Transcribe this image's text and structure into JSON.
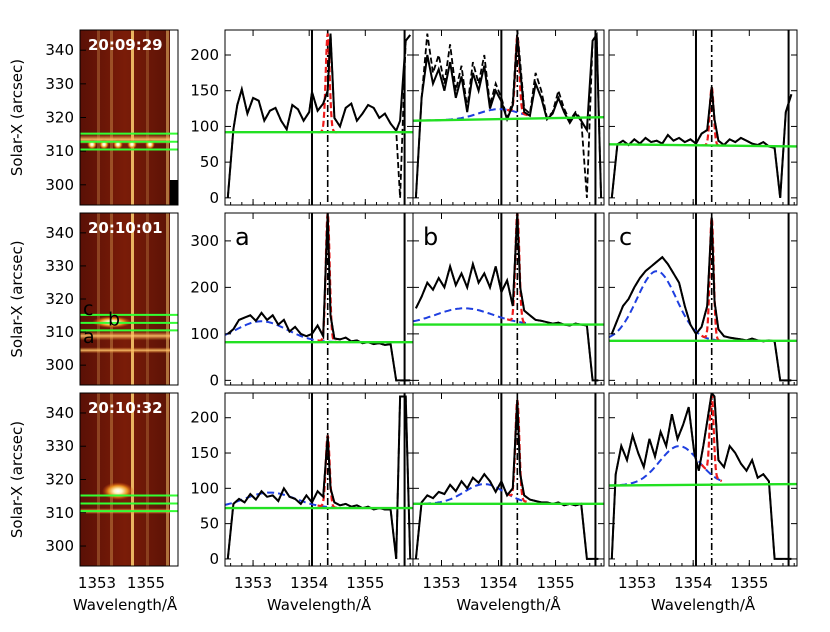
{
  "figure": {
    "ylabel": "Solar-X (arcsec)",
    "xlabel": "Wavelength/Å"
  },
  "chart_data": [
    {
      "type": "heatmap",
      "panel": "image-row-1",
      "timestamp": "20:09:29",
      "ylabel": "Solar-X (arcsec)",
      "x_ticks": [
        "1353",
        "1355"
      ],
      "y_ticks": [
        "340",
        "330",
        "320",
        "310",
        "300"
      ],
      "ylim": [
        294,
        346
      ],
      "green_lines_y": [
        310.5,
        312.8,
        315.2
      ],
      "slit_letters": [],
      "colormap": "red-yellow"
    },
    {
      "type": "heatmap",
      "panel": "image-row-2",
      "timestamp": "20:10:01",
      "ylabel": "Solar-X (arcsec)",
      "x_ticks": [
        "1353",
        "1355"
      ],
      "y_ticks": [
        "340",
        "330",
        "320",
        "310",
        "300"
      ],
      "ylim": [
        294,
        346
      ],
      "green_lines_y": [
        310.5,
        312.8,
        315.2
      ],
      "slit_letters": [
        "c",
        "b",
        "a"
      ],
      "colormap": "red-yellow"
    },
    {
      "type": "heatmap",
      "panel": "image-row-3",
      "timestamp": "20:10:32",
      "ylabel": "Solar-X (arcsec)",
      "xlabel": "Wavelength/Å",
      "x_ticks": [
        "1353",
        "1355"
      ],
      "y_ticks": [
        "340",
        "330",
        "320",
        "310",
        "300"
      ],
      "ylim": [
        294,
        346
      ],
      "green_lines_y": [
        310.5,
        312.8,
        315.2
      ],
      "slit_letters": [],
      "colormap": "red-yellow"
    },
    {
      "type": "line",
      "panel": "r1c1",
      "label": "",
      "xlim": [
        1352.5,
        1355.85
      ],
      "ylim": [
        -10,
        235
      ],
      "yticks": [
        0,
        50,
        100,
        150,
        200
      ],
      "background": 92,
      "gaussian": null,
      "x": [
        1352.55,
        1352.65,
        1352.72,
        1352.8,
        1352.9,
        1353.0,
        1353.1,
        1353.2,
        1353.3,
        1353.4,
        1353.5,
        1353.6,
        1353.7,
        1353.8,
        1353.9,
        1354.0,
        1354.05,
        1354.15,
        1354.25,
        1354.33,
        1354.38,
        1354.45,
        1354.55,
        1354.65,
        1354.75,
        1354.85,
        1354.95,
        1355.05,
        1355.15,
        1355.25,
        1355.35,
        1355.45,
        1355.55,
        1355.62,
        1355.72,
        1355.8
      ],
      "y": [
        0,
        96,
        130,
        152,
        118,
        140,
        136,
        108,
        122,
        126,
        108,
        96,
        130,
        124,
        108,
        120,
        148,
        122,
        132,
        150,
        230,
        112,
        100,
        126,
        132,
        108,
        118,
        130,
        126,
        112,
        118,
        104,
        94,
        108,
        220,
        228
      ],
      "dashed_y": [
        0,
        96,
        130,
        152,
        118,
        140,
        136,
        108,
        122,
        126,
        108,
        96,
        130,
        124,
        108,
        120,
        148,
        122,
        132,
        150,
        230,
        112,
        100,
        126,
        132,
        108,
        118,
        130,
        126,
        112,
        118,
        104,
        94,
        0,
        220,
        228
      ]
    },
    {
      "type": "line",
      "panel": "r1c2",
      "label": "",
      "xlim": [
        1352.5,
        1355.85
      ],
      "ylim": [
        -10,
        235
      ],
      "yticks": [
        0,
        50,
        100,
        150,
        200
      ],
      "background": [
        108,
        113
      ],
      "gaussian": {
        "amp": 14,
        "center": 1354.0,
        "sigma": 0.35
      },
      "x": [
        1352.55,
        1352.65,
        1352.75,
        1352.85,
        1352.95,
        1353.05,
        1353.15,
        1353.25,
        1353.35,
        1353.45,
        1353.55,
        1353.65,
        1353.75,
        1353.85,
        1353.95,
        1354.05,
        1354.15,
        1354.25,
        1354.33,
        1354.38,
        1354.45,
        1354.55,
        1354.65,
        1354.75,
        1354.85,
        1354.95,
        1355.05,
        1355.15,
        1355.25,
        1355.35,
        1355.45,
        1355.55,
        1355.65,
        1355.72,
        1355.8
      ],
      "y": [
        0,
        140,
        200,
        160,
        180,
        150,
        190,
        140,
        170,
        120,
        175,
        150,
        185,
        125,
        150,
        135,
        110,
        130,
        225,
        180,
        120,
        115,
        160,
        140,
        110,
        118,
        140,
        120,
        105,
        118,
        108,
        95,
        220,
        228,
        0
      ],
      "dashed_y": [
        0,
        140,
        230,
        175,
        200,
        160,
        215,
        150,
        185,
        125,
        190,
        160,
        200,
        130,
        160,
        140,
        112,
        135,
        235,
        190,
        125,
        118,
        175,
        150,
        112,
        120,
        150,
        125,
        108,
        120,
        110,
        0,
        220,
        228,
        0
      ]
    },
    {
      "type": "line",
      "panel": "r1c3",
      "label": "",
      "xlim": [
        1352.5,
        1355.85
      ],
      "ylim": [
        -10,
        235
      ],
      "yticks": [
        0,
        50,
        100,
        150,
        200
      ],
      "background": [
        75,
        72
      ],
      "gaussian": null,
      "x": [
        1352.55,
        1352.65,
        1352.75,
        1352.85,
        1352.95,
        1353.05,
        1353.15,
        1353.25,
        1353.35,
        1353.45,
        1353.55,
        1353.65,
        1353.75,
        1353.85,
        1353.95,
        1354.05,
        1354.15,
        1354.25,
        1354.33,
        1354.38,
        1354.45,
        1354.55,
        1354.65,
        1354.75,
        1354.85,
        1354.95,
        1355.05,
        1355.15,
        1355.25,
        1355.35,
        1355.45,
        1355.55,
        1355.65,
        1355.75
      ],
      "y": [
        0,
        75,
        80,
        74,
        82,
        76,
        84,
        78,
        80,
        76,
        88,
        80,
        84,
        78,
        82,
        76,
        90,
        95,
        155,
        110,
        80,
        74,
        82,
        78,
        84,
        80,
        76,
        74,
        78,
        72,
        70,
        0,
        120,
        145
      ],
      "dashed_y": [
        0,
        75,
        80,
        74,
        82,
        76,
        84,
        78,
        80,
        76,
        88,
        80,
        84,
        78,
        82,
        76,
        90,
        95,
        155,
        110,
        80,
        74,
        82,
        78,
        84,
        80,
        76,
        74,
        78,
        72,
        70,
        0,
        120,
        145
      ]
    },
    {
      "type": "line",
      "panel": "r2c1",
      "label": "a",
      "xlim": [
        1352.5,
        1355.85
      ],
      "ylim": [
        -10,
        360
      ],
      "yticks": [
        0,
        100,
        200,
        300
      ],
      "background": 82,
      "gaussian": {
        "amp": 45,
        "center": 1353.15,
        "sigma": 0.45
      },
      "x": [
        1352.55,
        1352.65,
        1352.75,
        1352.85,
        1352.95,
        1353.05,
        1353.15,
        1353.25,
        1353.35,
        1353.45,
        1353.55,
        1353.65,
        1353.75,
        1353.85,
        1353.95,
        1354.05,
        1354.15,
        1354.25,
        1354.33,
        1354.38,
        1354.45,
        1354.55,
        1354.65,
        1354.75,
        1354.85,
        1354.95,
        1355.05,
        1355.15,
        1355.25,
        1355.35,
        1355.45,
        1355.55,
        1355.65,
        1355.72,
        1355.8
      ],
      "y": [
        100,
        110,
        130,
        135,
        140,
        128,
        145,
        130,
        140,
        120,
        130,
        105,
        115,
        100,
        95,
        100,
        118,
        95,
        360,
        140,
        90,
        88,
        92,
        84,
        86,
        80,
        82,
        78,
        80,
        76,
        78,
        0,
        0,
        0,
        0
      ],
      "dashed_y": [
        100,
        110,
        130,
        135,
        140,
        128,
        145,
        130,
        140,
        120,
        130,
        105,
        115,
        100,
        95,
        100,
        118,
        95,
        360,
        140,
        90,
        88,
        92,
        84,
        86,
        80,
        82,
        78,
        80,
        76,
        78,
        0,
        0,
        0,
        0
      ]
    },
    {
      "type": "line",
      "panel": "r2c2",
      "label": "b",
      "xlim": [
        1352.5,
        1355.85
      ],
      "ylim": [
        -10,
        360
      ],
      "yticks": [
        0,
        100,
        200,
        300
      ],
      "background": 120,
      "gaussian": {
        "amp": 35,
        "center": 1353.4,
        "sigma": 0.5
      },
      "x": [
        1352.55,
        1352.65,
        1352.75,
        1352.85,
        1352.95,
        1353.05,
        1353.15,
        1353.25,
        1353.35,
        1353.45,
        1353.55,
        1353.65,
        1353.75,
        1353.85,
        1353.95,
        1354.05,
        1354.15,
        1354.25,
        1354.33,
        1354.38,
        1354.45,
        1354.55,
        1354.65,
        1354.75,
        1354.85,
        1354.95,
        1355.05,
        1355.15,
        1355.25,
        1355.35,
        1355.45,
        1355.55,
        1355.65,
        1355.75
      ],
      "y": [
        155,
        180,
        210,
        195,
        220,
        200,
        245,
        205,
        230,
        200,
        250,
        210,
        230,
        200,
        245,
        190,
        215,
        160,
        360,
        200,
        150,
        140,
        130,
        128,
        125,
        122,
        124,
        120,
        118,
        122,
        120,
        118,
        0,
        0
      ],
      "dashed_y": [
        155,
        180,
        210,
        195,
        220,
        200,
        245,
        205,
        230,
        200,
        250,
        210,
        230,
        200,
        245,
        190,
        215,
        160,
        360,
        200,
        150,
        140,
        130,
        128,
        125,
        122,
        124,
        120,
        118,
        122,
        120,
        118,
        0,
        0
      ]
    },
    {
      "type": "line",
      "panel": "r2c3",
      "label": "c",
      "xlim": [
        1352.5,
        1355.85
      ],
      "ylim": [
        -10,
        360
      ],
      "yticks": [
        0,
        100,
        200,
        300
      ],
      "background": 85,
      "gaussian": {
        "amp": 150,
        "center": 1353.35,
        "sigma": 0.35
      },
      "x": [
        1352.55,
        1352.65,
        1352.75,
        1352.85,
        1352.95,
        1353.05,
        1353.15,
        1353.25,
        1353.35,
        1353.45,
        1353.55,
        1353.65,
        1353.75,
        1353.85,
        1353.95,
        1354.05,
        1354.15,
        1354.25,
        1354.33,
        1354.38,
        1354.45,
        1354.55,
        1354.65,
        1354.75,
        1354.85,
        1354.95,
        1355.05,
        1355.15,
        1355.25,
        1355.35,
        1355.45,
        1355.55,
        1355.65,
        1355.75
      ],
      "y": [
        100,
        130,
        160,
        175,
        200,
        220,
        235,
        245,
        255,
        265,
        250,
        230,
        210,
        160,
        120,
        100,
        115,
        160,
        350,
        170,
        110,
        95,
        92,
        90,
        88,
        86,
        90,
        86,
        84,
        86,
        84,
        0,
        0,
        0
      ],
      "dashed_y": [
        100,
        130,
        160,
        175,
        200,
        220,
        235,
        245,
        255,
        265,
        250,
        230,
        210,
        160,
        120,
        100,
        115,
        160,
        350,
        170,
        110,
        95,
        92,
        90,
        88,
        86,
        90,
        86,
        84,
        86,
        84,
        0,
        0,
        0
      ]
    },
    {
      "type": "line",
      "panel": "r3c1",
      "label": "",
      "xlim": [
        1352.5,
        1355.85
      ],
      "ylim": [
        -10,
        235
      ],
      "yticks": [
        0,
        50,
        100,
        150,
        200
      ],
      "background": [
        72,
        72
      ],
      "gaussian": {
        "amp": 22,
        "center": 1353.3,
        "sigma": 0.45
      },
      "x": [
        1352.55,
        1352.65,
        1352.75,
        1352.85,
        1352.95,
        1353.05,
        1353.15,
        1353.25,
        1353.35,
        1353.45,
        1353.55,
        1353.65,
        1353.75,
        1353.85,
        1353.95,
        1354.05,
        1354.15,
        1354.25,
        1354.33,
        1354.38,
        1354.45,
        1354.55,
        1354.65,
        1354.75,
        1354.85,
        1354.95,
        1355.05,
        1355.15,
        1355.25,
        1355.35,
        1355.45,
        1355.55,
        1355.62,
        1355.72,
        1355.8
      ],
      "y": [
        0,
        78,
        85,
        80,
        92,
        84,
        96,
        88,
        90,
        82,
        100,
        88,
        85,
        78,
        90,
        80,
        96,
        88,
        175,
        100,
        80,
        76,
        78,
        74,
        76,
        72,
        74,
        70,
        72,
        70,
        70,
        0,
        230,
        230,
        0
      ],
      "dashed_y": [
        0,
        78,
        85,
        80,
        92,
        84,
        96,
        88,
        90,
        82,
        100,
        88,
        85,
        78,
        90,
        80,
        96,
        88,
        175,
        100,
        80,
        76,
        78,
        74,
        76,
        72,
        74,
        70,
        72,
        70,
        70,
        0,
        230,
        230,
        0
      ]
    },
    {
      "type": "line",
      "panel": "r3c2",
      "label": "",
      "xlim": [
        1352.5,
        1355.85
      ],
      "ylim": [
        -10,
        235
      ],
      "yticks": [
        0,
        50,
        100,
        150,
        200
      ],
      "background": [
        78,
        78
      ],
      "gaussian": {
        "amp": 28,
        "center": 1353.75,
        "sigma": 0.35
      },
      "x": [
        1352.55,
        1352.65,
        1352.75,
        1352.85,
        1352.95,
        1353.05,
        1353.15,
        1353.25,
        1353.35,
        1353.45,
        1353.55,
        1353.65,
        1353.75,
        1353.85,
        1353.95,
        1354.05,
        1354.15,
        1354.25,
        1354.33,
        1354.38,
        1354.45,
        1354.55,
        1354.65,
        1354.75,
        1354.85,
        1354.95,
        1355.05,
        1355.15,
        1355.25,
        1355.35,
        1355.45,
        1355.55,
        1355.65,
        1355.75
      ],
      "y": [
        0,
        80,
        90,
        86,
        95,
        92,
        105,
        96,
        110,
        100,
        115,
        108,
        120,
        110,
        95,
        110,
        90,
        100,
        225,
        120,
        90,
        84,
        82,
        80,
        80,
        78,
        80,
        76,
        78,
        76,
        78,
        0,
        0,
        0
      ],
      "dashed_y": [
        0,
        80,
        90,
        86,
        95,
        92,
        105,
        96,
        110,
        100,
        115,
        108,
        120,
        110,
        95,
        110,
        90,
        100,
        225,
        120,
        90,
        84,
        82,
        80,
        80,
        78,
        80,
        76,
        78,
        76,
        78,
        0,
        0,
        0
      ]
    },
    {
      "type": "line",
      "panel": "r3c3",
      "label": "",
      "xlim": [
        1352.5,
        1355.85
      ],
      "ylim": [
        -10,
        235
      ],
      "yticks": [
        0,
        50,
        100,
        150,
        200
      ],
      "background": [
        104,
        106
      ],
      "gaussian": {
        "amp": 55,
        "center": 1353.75,
        "sigma": 0.35
      },
      "x": [
        1352.55,
        1352.62,
        1352.72,
        1352.82,
        1352.92,
        1353.02,
        1353.12,
        1353.22,
        1353.32,
        1353.42,
        1353.52,
        1353.62,
        1353.72,
        1353.82,
        1353.92,
        1354.02,
        1354.1,
        1354.18,
        1354.26,
        1354.33,
        1354.38,
        1354.45,
        1354.55,
        1354.65,
        1354.75,
        1354.85,
        1354.95,
        1355.05,
        1355.15,
        1355.25,
        1355.35,
        1355.45,
        1355.55,
        1355.65,
        1355.75
      ],
      "y": [
        0,
        120,
        160,
        140,
        175,
        150,
        130,
        170,
        145,
        180,
        160,
        205,
        170,
        190,
        215,
        150,
        125,
        160,
        200,
        235,
        230,
        140,
        130,
        160,
        150,
        135,
        125,
        140,
        115,
        120,
        110,
        0,
        0,
        0,
        0
      ],
      "dashed_y": [
        0,
        120,
        160,
        140,
        175,
        150,
        130,
        170,
        145,
        180,
        160,
        205,
        170,
        190,
        215,
        150,
        125,
        160,
        200,
        235,
        230,
        140,
        130,
        160,
        150,
        135,
        125,
        140,
        115,
        120,
        110,
        0,
        0,
        0,
        0
      ]
    }
  ],
  "spectrum_x_ticks": [
    "1353",
    "1354",
    "1355"
  ],
  "reference_lines": {
    "solid_x": [
      1354.05,
      1355.7
    ],
    "dashdot_x": 1354.33
  },
  "colors": {
    "profile": "#000000",
    "fit_red": "#ee1b1b",
    "gaussian_blue": "#1f3fe0",
    "background_green": "#22e022",
    "slit_green": "#33ff33",
    "timestamp_text": "#ffffff"
  }
}
